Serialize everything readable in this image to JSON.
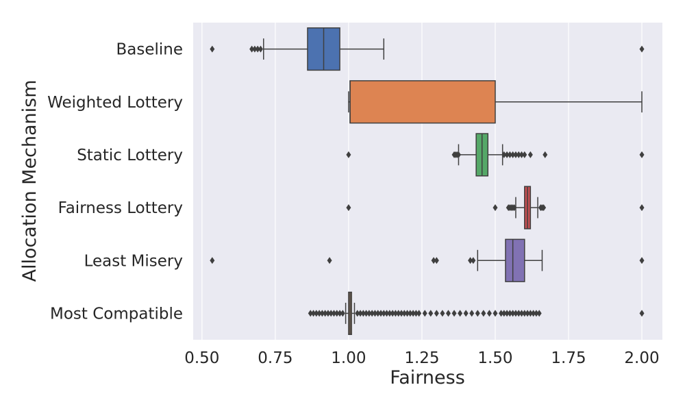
{
  "chart_data": {
    "type": "box",
    "orientation": "horizontal",
    "title": "",
    "xlabel": "Fairness",
    "ylabel": "Allocation Mechanism",
    "xlim": [
      0.47,
      2.07
    ],
    "xticks": [
      0.5,
      0.75,
      1.0,
      1.25,
      1.5,
      1.75,
      2.0
    ],
    "xtick_labels": [
      "0.50",
      "0.75",
      "1.00",
      "1.25",
      "1.50",
      "1.75",
      "2.00"
    ],
    "grid": true,
    "background": "#eaeaf2",
    "categories": [
      "Baseline",
      "Weighted Lottery",
      "Static Lottery",
      "Fairness Lottery",
      "Least Misery",
      "Most Compatible"
    ],
    "series": [
      {
        "category": "Baseline",
        "color": "#4c72b0",
        "whisker_low": 0.71,
        "q1": 0.86,
        "median": 0.915,
        "q3": 0.97,
        "whisker_high": 1.12,
        "outliers": [
          0.535,
          0.67,
          0.68,
          0.69,
          0.7,
          2.0
        ]
      },
      {
        "category": "Weighted Lottery",
        "color": "#dd8452",
        "whisker_low": 1.0,
        "q1": 1.005,
        "median": 1.005,
        "q3": 1.5,
        "whisker_high": 2.0,
        "outliers": []
      },
      {
        "category": "Static Lottery",
        "color": "#55a868",
        "whisker_low": 1.375,
        "q1": 1.435,
        "median": 1.455,
        "q3": 1.475,
        "whisker_high": 1.525,
        "outliers": [
          1.0,
          1.36,
          1.365,
          1.37,
          1.375,
          1.53,
          1.54,
          1.55,
          1.56,
          1.57,
          1.58,
          1.59,
          1.6,
          1.62,
          1.67,
          2.0
        ]
      },
      {
        "category": "Fairness Lottery",
        "color": "#c44e52",
        "whisker_low": 1.57,
        "q1": 1.6,
        "median": 1.61,
        "q3": 1.62,
        "whisker_high": 1.645,
        "outliers": [
          1.0,
          1.5,
          1.545,
          1.55,
          1.555,
          1.56,
          1.565,
          1.655,
          1.66,
          1.665,
          2.0
        ]
      },
      {
        "category": "Least Misery",
        "color": "#8172b3",
        "whisker_low": 1.44,
        "q1": 1.535,
        "median": 1.56,
        "q3": 1.6,
        "whisker_high": 1.66,
        "outliers": [
          0.535,
          0.935,
          1.29,
          1.3,
          1.415,
          1.425,
          2.0
        ]
      },
      {
        "category": "Most Compatible",
        "color": "#937860",
        "whisker_low": 0.99,
        "q1": 1.0,
        "median": 1.005,
        "q3": 1.01,
        "whisker_high": 1.02,
        "outliers": [
          0.87,
          0.88,
          0.89,
          0.9,
          0.91,
          0.92,
          0.93,
          0.94,
          0.95,
          0.96,
          0.97,
          0.98,
          1.03,
          1.04,
          1.05,
          1.06,
          1.07,
          1.08,
          1.09,
          1.1,
          1.11,
          1.12,
          1.13,
          1.14,
          1.15,
          1.16,
          1.17,
          1.18,
          1.19,
          1.2,
          1.21,
          1.22,
          1.23,
          1.24,
          1.26,
          1.28,
          1.3,
          1.32,
          1.34,
          1.36,
          1.38,
          1.4,
          1.42,
          1.44,
          1.46,
          1.48,
          1.5,
          1.52,
          1.53,
          1.54,
          1.55,
          1.56,
          1.57,
          1.58,
          1.59,
          1.6,
          1.61,
          1.62,
          1.63,
          1.64,
          1.65,
          2.0
        ]
      }
    ]
  }
}
